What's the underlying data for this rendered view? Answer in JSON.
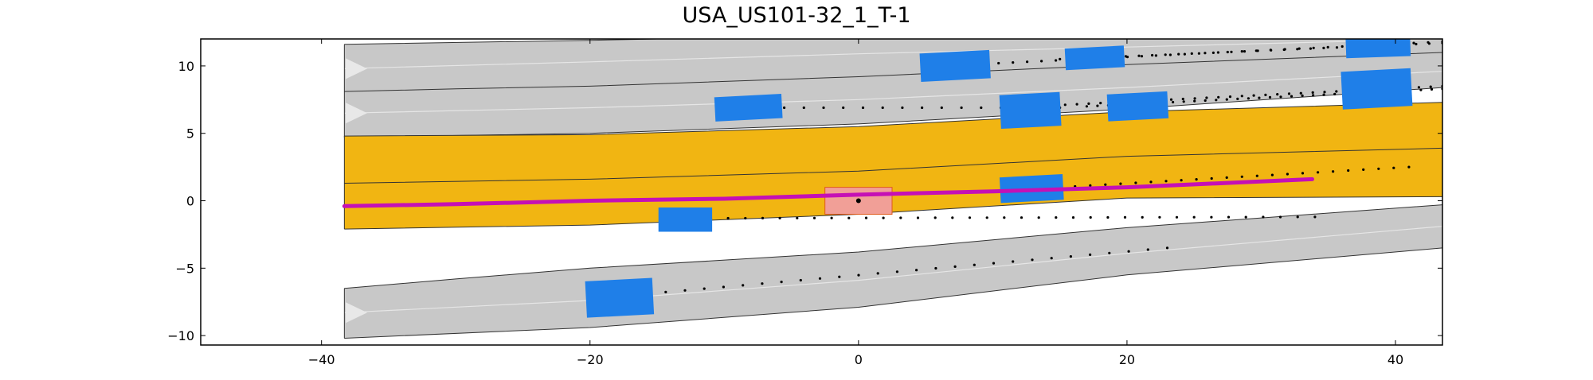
{
  "title": "USA_US101-32_1_T-1",
  "chart_data": {
    "type": "scenario-plot",
    "title": "USA_US101-32_1_T-1",
    "xlim": [
      -49,
      43.5
    ],
    "ylim": [
      -10.7,
      12.0
    ],
    "x_ticks": [
      -40,
      -20,
      0,
      20,
      40
    ],
    "y_ticks": [
      -10,
      -5,
      0,
      5,
      10
    ],
    "x_tick_labels": [
      "−40",
      "−20",
      "0",
      "20",
      "40"
    ],
    "y_tick_labels": [
      "−10",
      "−5",
      "0",
      "5",
      "10"
    ],
    "colors": {
      "lane": "#c8c8c8",
      "lane_border": "#333333",
      "lane_center": "#e6e6e6",
      "ego_lane": "#f1b512",
      "vehicle": "#1f7fe8",
      "ego_vehicle": "#f19f97",
      "ego_outline": "#e0591a",
      "route": "#c510b5",
      "marker": "#000000"
    },
    "road_groups": [
      {
        "name": "upper-road",
        "fill": "lane",
        "left": [
          [
            -38.3,
            11.6
          ],
          [
            -20,
            11.9
          ],
          [
            0,
            12.3
          ],
          [
            20,
            12.6
          ],
          [
            43.5,
            13.0
          ]
        ],
        "right": [
          [
            -38.3,
            4.7
          ],
          [
            -20,
            5.0
          ],
          [
            0,
            5.7
          ],
          [
            20,
            6.8
          ],
          [
            43.5,
            8.4
          ]
        ],
        "dividers": [
          [
            [
              -38.3,
              8.1
            ],
            [
              -30,
              8.3
            ],
            [
              -20,
              8.5
            ],
            [
              0,
              9.2
            ],
            [
              20,
              10.1
            ],
            [
              43.5,
              11.0
            ]
          ]
        ],
        "centers": [
          [
            [
              -38.3,
              9.8
            ],
            [
              -20,
              10.3
            ],
            [
              0,
              10.9
            ],
            [
              20,
              11.4
            ],
            [
              43.5,
              12.0
            ]
          ],
          [
            [
              -38.3,
              6.5
            ],
            [
              -20,
              6.9
            ],
            [
              0,
              7.5
            ],
            [
              20,
              8.4
            ],
            [
              43.5,
              9.6
            ]
          ]
        ],
        "arrows": [
          {
            "x": -38.2,
            "y": 9.8
          },
          {
            "x": -38.2,
            "y": 6.5
          }
        ]
      },
      {
        "name": "ego-road",
        "fill": "ego_lane",
        "left": [
          [
            -38.3,
            4.8
          ],
          [
            -20,
            4.9
          ],
          [
            0,
            5.5
          ],
          [
            20,
            6.6
          ],
          [
            43.5,
            7.3
          ]
        ],
        "right": [
          [
            -38.3,
            -2.1
          ],
          [
            -20,
            -1.8
          ],
          [
            0,
            -1.0
          ],
          [
            20,
            0.2
          ],
          [
            43.5,
            0.3
          ]
        ],
        "dividers": [
          [
            [
              -38.3,
              1.3
            ],
            [
              -20,
              1.6
            ],
            [
              0,
              2.2
            ],
            [
              20,
              3.3
            ],
            [
              43.5,
              3.9
            ]
          ]
        ],
        "centers": [],
        "arrows": []
      },
      {
        "name": "lower-road",
        "fill": "lane",
        "left": [
          [
            -38.3,
            -6.5
          ],
          [
            -30,
            -5.8
          ],
          [
            -20,
            -5.0
          ],
          [
            0,
            -3.8
          ],
          [
            20,
            -2.0
          ],
          [
            43.5,
            -0.3
          ]
        ],
        "right": [
          [
            -38.3,
            -10.2
          ],
          [
            -20,
            -9.4
          ],
          [
            0,
            -7.9
          ],
          [
            20,
            -5.5
          ],
          [
            43.5,
            -3.5
          ]
        ],
        "dividers": [],
        "centers": [
          [
            [
              -38.3,
              -8.3
            ],
            [
              -20,
              -7.4
            ],
            [
              0,
              -5.9
            ],
            [
              20,
              -3.9
            ],
            [
              43.5,
              -1.9
            ]
          ]
        ],
        "arrows": [
          {
            "x": -38.2,
            "y": -8.3
          }
        ]
      }
    ],
    "route": [
      [
        -38.3,
        -0.4
      ],
      [
        -30,
        -0.25
      ],
      [
        -20,
        0.0
      ],
      [
        -10,
        0.15
      ],
      [
        0,
        0.45
      ],
      [
        10,
        0.7
      ],
      [
        20,
        1.0
      ],
      [
        33.8,
        1.6
      ]
    ],
    "ego_vehicle": {
      "x": 0,
      "y": 0,
      "length": 5.0,
      "width": 2.0,
      "angle_deg": 0
    },
    "vehicles": [
      {
        "x": 7.2,
        "y": 10.0,
        "length": 5.2,
        "width": 2.1,
        "angle_deg": 3
      },
      {
        "x": 17.6,
        "y": 10.6,
        "length": 4.4,
        "width": 1.6,
        "angle_deg": 3
      },
      {
        "x": 38.7,
        "y": 11.6,
        "length": 4.8,
        "width": 1.9,
        "angle_deg": 2
      },
      {
        "x": -8.2,
        "y": 6.9,
        "length": 5.0,
        "width": 1.8,
        "angle_deg": 3
      },
      {
        "x": 12.8,
        "y": 6.7,
        "length": 4.5,
        "width": 2.5,
        "angle_deg": 3
      },
      {
        "x": 20.8,
        "y": 7.0,
        "length": 4.5,
        "width": 2.0,
        "angle_deg": 3
      },
      {
        "x": 38.6,
        "y": 8.3,
        "length": 5.2,
        "width": 2.8,
        "angle_deg": 3
      },
      {
        "x": 12.9,
        "y": 0.9,
        "length": 4.7,
        "width": 1.9,
        "angle_deg": 3
      },
      {
        "x": -12.9,
        "y": -1.4,
        "length": 4.0,
        "width": 1.8,
        "angle_deg": 0
      },
      {
        "x": -17.8,
        "y": -7.2,
        "length": 5.0,
        "width": 2.7,
        "angle_deg": 3
      }
    ],
    "trajectories": [
      {
        "from": [
          8.3,
          10.1
        ],
        "to": [
          43.5,
          11.8
        ],
        "n": 34
      },
      {
        "from": [
          15,
          10.5
        ],
        "to": [
          43.5,
          11.7
        ],
        "n": 30
      },
      {
        "from": [
          -7,
          6.9
        ],
        "to": [
          15,
          6.9
        ],
        "n": 16
      },
      {
        "from": [
          11,
          6.9
        ],
        "to": [
          43.5,
          8.5
        ],
        "n": 38
      },
      {
        "from": [
          17,
          7.0
        ],
        "to": [
          43.5,
          8.3
        ],
        "n": 34
      },
      {
        "from": [
          15,
          1.0
        ],
        "to": [
          41,
          2.5
        ],
        "n": 24
      },
      {
        "from": [
          -11,
          -1.3
        ],
        "to": [
          34,
          -1.2
        ],
        "n": 36
      },
      {
        "from": [
          -15.8,
          -6.9
        ],
        "to": [
          23,
          -3.5
        ],
        "n": 28
      }
    ]
  }
}
